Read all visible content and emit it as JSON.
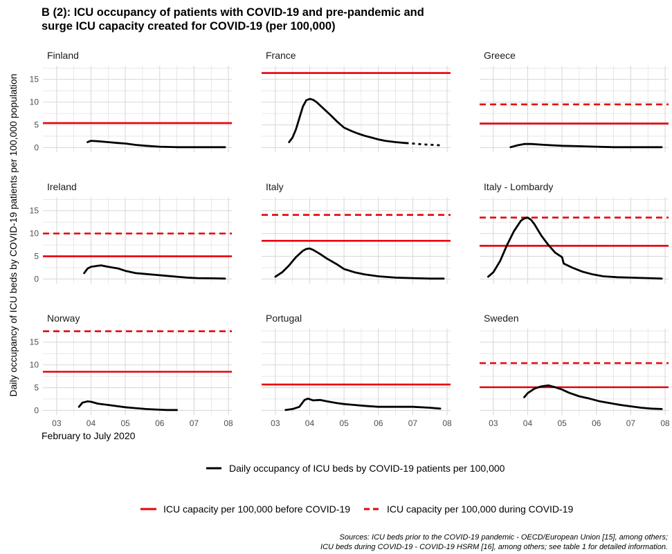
{
  "title": {
    "line1": "B (2): ICU occupancy of patients with COVID-19 and pre-pandemic and",
    "line2": "surge ICU capacity created for COVID-19 (per 100,000)"
  },
  "source": {
    "line1": "Sources: ICU beds prior to the COVID-19 pandemic - OECD/European Union [15], among others;",
    "line2": "ICU beds during COVID-19 - COVID-19 HSRM [16], among others; see table 1 for detailed information."
  },
  "colors": {
    "occupancy": "#000000",
    "capacity": "#e8000b",
    "grid": "#d9d9d9"
  },
  "chart_data": {
    "type": "line",
    "xlabel": "February to July 2020",
    "ylabel": "Daily occupancy of ICU beds by COVID-19 patients per 100,000 population",
    "xlim": [
      2.6,
      8.1
    ],
    "ylim": [
      -1,
      18
    ],
    "x_ticks": [
      3,
      4,
      5,
      6,
      7,
      8
    ],
    "x_tick_labels": [
      "03",
      "04",
      "05",
      "06",
      "07",
      "08"
    ],
    "y_ticks": [
      0,
      5,
      10,
      15
    ],
    "y_tick_labels": [
      "0",
      "5",
      "10",
      "15"
    ],
    "grid": true,
    "legend": {
      "placement": "bottom",
      "occupancy": "Daily occupancy of ICU beds by COVID-19 patients per 100,000",
      "before": "ICU capacity per 100,000 before COVID-19",
      "during": "ICU capacity per 100,000 during COVID-19"
    },
    "panels": [
      {
        "name": "Finland",
        "before": 5.4,
        "during": null,
        "dotted_from": null,
        "occupancy": [
          [
            3.9,
            1.2
          ],
          [
            4.0,
            1.5
          ],
          [
            4.2,
            1.4
          ],
          [
            4.5,
            1.2
          ],
          [
            4.8,
            1.0
          ],
          [
            5.0,
            0.9
          ],
          [
            5.3,
            0.6
          ],
          [
            5.6,
            0.4
          ],
          [
            6.0,
            0.2
          ],
          [
            6.5,
            0.1
          ],
          [
            7.0,
            0.1
          ],
          [
            7.5,
            0.1
          ],
          [
            7.9,
            0.1
          ]
        ]
      },
      {
        "name": "France",
        "before": 16.4,
        "during": null,
        "dotted_from": 6.8,
        "occupancy": [
          [
            3.4,
            1.2
          ],
          [
            3.5,
            2.2
          ],
          [
            3.6,
            4.0
          ],
          [
            3.7,
            6.5
          ],
          [
            3.8,
            9.0
          ],
          [
            3.9,
            10.4
          ],
          [
            4.0,
            10.7
          ],
          [
            4.1,
            10.5
          ],
          [
            4.2,
            10.0
          ],
          [
            4.4,
            8.6
          ],
          [
            4.6,
            7.2
          ],
          [
            4.8,
            5.7
          ],
          [
            5.0,
            4.4
          ],
          [
            5.2,
            3.7
          ],
          [
            5.4,
            3.1
          ],
          [
            5.6,
            2.6
          ],
          [
            5.8,
            2.2
          ],
          [
            6.0,
            1.8
          ],
          [
            6.2,
            1.5
          ],
          [
            6.5,
            1.2
          ],
          [
            6.8,
            1.0
          ],
          [
            7.0,
            0.9
          ],
          [
            7.3,
            0.7
          ],
          [
            7.6,
            0.6
          ],
          [
            7.8,
            0.5
          ]
        ]
      },
      {
        "name": "Greece",
        "before": 5.3,
        "during": 9.5,
        "dotted_from": null,
        "occupancy": [
          [
            3.5,
            0.1
          ],
          [
            3.7,
            0.5
          ],
          [
            3.9,
            0.8
          ],
          [
            4.1,
            0.8
          ],
          [
            4.5,
            0.6
          ],
          [
            5.0,
            0.4
          ],
          [
            5.5,
            0.3
          ],
          [
            6.0,
            0.2
          ],
          [
            6.5,
            0.1
          ],
          [
            7.0,
            0.1
          ],
          [
            7.5,
            0.1
          ],
          [
            7.9,
            0.1
          ]
        ]
      },
      {
        "name": "Ireland",
        "before": 5.0,
        "during": 10.0,
        "dotted_from": null,
        "occupancy": [
          [
            3.8,
            1.3
          ],
          [
            3.9,
            2.3
          ],
          [
            4.0,
            2.7
          ],
          [
            4.2,
            2.9
          ],
          [
            4.3,
            3.0
          ],
          [
            4.5,
            2.7
          ],
          [
            4.8,
            2.3
          ],
          [
            5.0,
            1.8
          ],
          [
            5.3,
            1.3
          ],
          [
            5.6,
            1.1
          ],
          [
            5.9,
            0.9
          ],
          [
            6.2,
            0.7
          ],
          [
            6.5,
            0.5
          ],
          [
            6.8,
            0.3
          ],
          [
            7.1,
            0.2
          ],
          [
            7.5,
            0.15
          ],
          [
            7.9,
            0.1
          ]
        ]
      },
      {
        "name": "Italy",
        "before": 8.4,
        "during": 14.1,
        "dotted_from": null,
        "occupancy": [
          [
            3.0,
            0.5
          ],
          [
            3.2,
            1.5
          ],
          [
            3.4,
            3.0
          ],
          [
            3.6,
            4.8
          ],
          [
            3.8,
            6.2
          ],
          [
            3.9,
            6.6
          ],
          [
            4.0,
            6.7
          ],
          [
            4.1,
            6.4
          ],
          [
            4.3,
            5.5
          ],
          [
            4.5,
            4.5
          ],
          [
            4.8,
            3.2
          ],
          [
            5.0,
            2.2
          ],
          [
            5.3,
            1.5
          ],
          [
            5.6,
            1.0
          ],
          [
            6.0,
            0.6
          ],
          [
            6.5,
            0.3
          ],
          [
            7.0,
            0.2
          ],
          [
            7.5,
            0.1
          ],
          [
            7.9,
            0.1
          ]
        ]
      },
      {
        "name": "Italy - Lombardy",
        "before": 7.3,
        "during": 13.5,
        "dotted_from": null,
        "occupancy": [
          [
            2.85,
            0.5
          ],
          [
            3.0,
            1.5
          ],
          [
            3.2,
            4.0
          ],
          [
            3.4,
            7.5
          ],
          [
            3.6,
            10.5
          ],
          [
            3.8,
            12.8
          ],
          [
            3.9,
            13.3
          ],
          [
            4.0,
            13.5
          ],
          [
            4.1,
            13.0
          ],
          [
            4.2,
            12.0
          ],
          [
            4.4,
            9.5
          ],
          [
            4.6,
            7.5
          ],
          [
            4.8,
            5.8
          ],
          [
            5.0,
            4.8
          ],
          [
            5.05,
            3.4
          ],
          [
            5.3,
            2.5
          ],
          [
            5.6,
            1.6
          ],
          [
            5.9,
            1.0
          ],
          [
            6.2,
            0.6
          ],
          [
            6.6,
            0.4
          ],
          [
            7.0,
            0.3
          ],
          [
            7.5,
            0.2
          ],
          [
            7.9,
            0.1
          ]
        ]
      },
      {
        "name": "Norway",
        "before": 8.5,
        "during": 17.4,
        "dotted_from": null,
        "occupancy": [
          [
            3.65,
            0.8
          ],
          [
            3.75,
            1.7
          ],
          [
            3.9,
            2.0
          ],
          [
            4.0,
            1.9
          ],
          [
            4.2,
            1.5
          ],
          [
            4.5,
            1.2
          ],
          [
            4.8,
            0.9
          ],
          [
            5.0,
            0.7
          ],
          [
            5.3,
            0.5
          ],
          [
            5.6,
            0.3
          ],
          [
            5.9,
            0.2
          ],
          [
            6.2,
            0.1
          ],
          [
            6.5,
            0.1
          ]
        ]
      },
      {
        "name": "Portugal",
        "before": 5.7,
        "during": null,
        "dotted_from": null,
        "occupancy": [
          [
            3.3,
            0.1
          ],
          [
            3.5,
            0.3
          ],
          [
            3.7,
            0.8
          ],
          [
            3.85,
            2.3
          ],
          [
            3.95,
            2.6
          ],
          [
            4.1,
            2.2
          ],
          [
            4.3,
            2.3
          ],
          [
            4.5,
            2.0
          ],
          [
            4.8,
            1.6
          ],
          [
            5.0,
            1.4
          ],
          [
            5.3,
            1.2
          ],
          [
            5.6,
            1.0
          ],
          [
            6.0,
            0.8
          ],
          [
            6.5,
            0.8
          ],
          [
            7.0,
            0.8
          ],
          [
            7.5,
            0.6
          ],
          [
            7.8,
            0.4
          ]
        ]
      },
      {
        "name": "Sweden",
        "before": 5.1,
        "during": 10.4,
        "dotted_from": null,
        "occupancy": [
          [
            3.9,
            2.9
          ],
          [
            4.0,
            3.8
          ],
          [
            4.2,
            4.8
          ],
          [
            4.4,
            5.3
          ],
          [
            4.6,
            5.5
          ],
          [
            4.8,
            5.1
          ],
          [
            5.0,
            4.6
          ],
          [
            5.2,
            3.9
          ],
          [
            5.5,
            3.1
          ],
          [
            5.8,
            2.6
          ],
          [
            6.1,
            2.0
          ],
          [
            6.4,
            1.6
          ],
          [
            6.7,
            1.2
          ],
          [
            7.0,
            0.9
          ],
          [
            7.3,
            0.6
          ],
          [
            7.6,
            0.4
          ],
          [
            7.9,
            0.3
          ]
        ]
      }
    ]
  }
}
